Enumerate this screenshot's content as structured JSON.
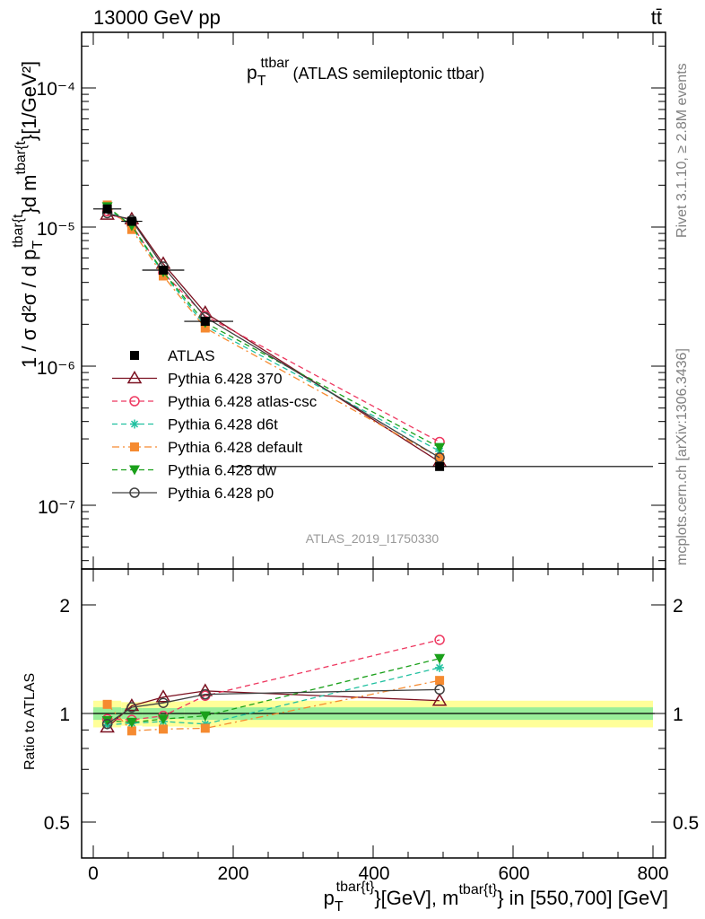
{
  "header": {
    "energy_label": "13000 GeV pp",
    "process_label": "tt̄"
  },
  "side_labels": {
    "rivet": "Rivet 3.1.10, ≥ 2.8M events",
    "mcplots": "mcplots.cern.ch [arXiv:1306.3436]"
  },
  "main_plot": {
    "title_main": "p",
    "title_sub": "T",
    "title_sup": "ttbar",
    "title_suffix": "(ATLAS semileptonic ttbar)",
    "ylabel_prefix": "1 / σ d²σ / d p",
    "ylabel_sub": "T",
    "ylabel_sup": "tbar{t",
    "ylabel_mid": "}d m",
    "ylabel_sup2": "tbar{t",
    "ylabel_suffix": "}[1/GeV²]",
    "watermark": "ATLAS_2019_I1750330",
    "ytick_labels": [
      "10⁻⁷",
      "10⁻⁶",
      "10⁻⁵",
      "10⁻⁴"
    ]
  },
  "ratio_plot": {
    "ylabel": "Ratio to ATLAS",
    "ytick_labels": [
      "0.5",
      "1",
      "2"
    ],
    "xtick_labels": [
      "0",
      "200",
      "400",
      "600",
      "800"
    ]
  },
  "xaxis": {
    "label_p": "p",
    "label_sub": "T",
    "label_sup": "tbar{t}",
    "label_mid": "}[GeV], m",
    "label_sup2": "tbar{t}",
    "label_suffix": "} in [550,700] [GeV]"
  },
  "chart_data": {
    "type": "line",
    "title": "p_T^ttbar (ATLAS semileptonic ttbar)",
    "x": [
      20,
      55,
      100,
      160,
      495
    ],
    "xlim": [
      -20,
      810
    ],
    "main_ylim": [
      3e-08,
      0.00025
    ],
    "main_yscale": "log",
    "ratio_ylim": [
      0.4,
      2.3
    ],
    "ratio_yscale": "log",
    "data": {
      "name": "ATLAS",
      "values": [
        1.35e-05,
        1.1e-05,
        4.9e-06,
        2.1e-06,
        1.9e-07
      ],
      "bin_edges": [
        0,
        40,
        70,
        130,
        200,
        800
      ],
      "stat_band": [
        0.04,
        0.035,
        0.035,
        0.04,
        0.04
      ],
      "total_band": [
        0.085,
        0.075,
        0.08,
        0.085,
        0.085
      ]
    },
    "series": [
      {
        "name": "Pythia 6.428 370",
        "color": "#7b1020",
        "marker": "triangle-open",
        "dash": "solid",
        "values": [
          1.23e-05,
          1.14e-05,
          5.45e-06,
          2.42e-06,
          2.05e-07
        ],
        "ratio": [
          0.915,
          1.05,
          1.11,
          1.155,
          1.085
        ]
      },
      {
        "name": "Pythia 6.428 atlas-csc",
        "color": "#ee3860",
        "marker": "circle-open",
        "dash": "dashed",
        "values": [
          1.3e-05,
          1.04e-05,
          4.7e-06,
          2.3e-06,
          2.85e-07
        ],
        "ratio": [
          0.965,
          0.96,
          0.985,
          1.12,
          1.6
        ]
      },
      {
        "name": "Pythia 6.428 d6t",
        "color": "#20c0a0",
        "marker": "star",
        "dash": "dashed",
        "values": [
          1.38e-05,
          1e-05,
          4.65e-06,
          1.95e-06,
          2.45e-07
        ],
        "ratio": [
          0.93,
          0.94,
          0.95,
          0.935,
          1.34
        ]
      },
      {
        "name": "Pythia 6.428 default",
        "color": "#f58a30",
        "marker": "square",
        "dash": "dashdot",
        "values": [
          1.44e-05,
          9.6e-06,
          4.45e-06,
          1.88e-06,
          2.2e-07
        ],
        "ratio": [
          1.06,
          0.895,
          0.905,
          0.91,
          1.235
        ]
      },
      {
        "name": "Pythia 6.428 dw",
        "color": "#1aa01a",
        "marker": "triangle-down",
        "dash": "dashed",
        "values": [
          1.4e-05,
          1.02e-05,
          4.75e-06,
          2.05e-06,
          2.6e-07
        ],
        "ratio": [
          0.955,
          0.945,
          0.965,
          0.985,
          1.42
        ]
      },
      {
        "name": "Pythia 6.428 p0",
        "color": "#404040",
        "marker": "circle-open",
        "dash": "solid",
        "values": [
          1.26e-05,
          1.12e-05,
          5.2e-06,
          2.25e-06,
          2.2e-07
        ],
        "ratio": [
          0.935,
          1.04,
          1.07,
          1.13,
          1.165
        ]
      }
    ]
  }
}
